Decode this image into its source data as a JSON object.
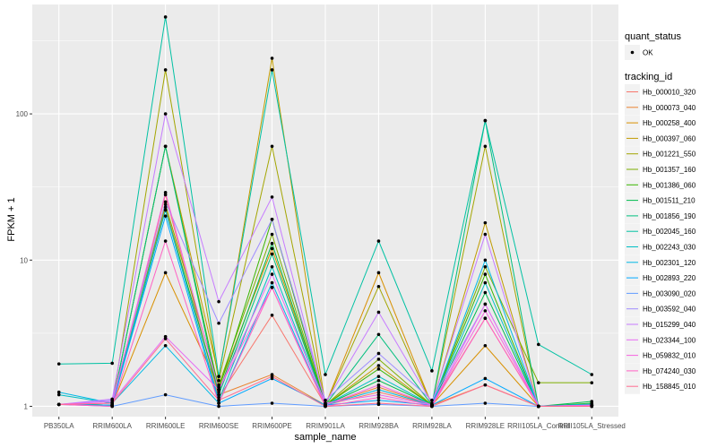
{
  "chart_data": {
    "type": "line",
    "xlabel": "sample_name",
    "ylabel": "FPKM + 1",
    "y_scale": "log10",
    "ylim": [
      0.85,
      560
    ],
    "y_ticks": [
      1,
      10,
      100
    ],
    "y_tick_labels": [
      "1",
      "10",
      "100"
    ],
    "grid": true,
    "legend_placement": "right",
    "x": [
      "PB350LA",
      "RRIM600LA",
      "RRIM600LE",
      "RRIM600SE",
      "RRIM600PE",
      "RRIM901LA",
      "RRIM928BA",
      "RRIM928LA",
      "RRIM928LE",
      "RRII105LA_Control",
      "RRII105LA_Stressed"
    ],
    "shape_legend": {
      "title": "quant_status",
      "entries": [
        "OK"
      ]
    },
    "color_legend_title": "tracking_id",
    "series": [
      {
        "name": "Hb_000010_320",
        "color": "#F8766D",
        "values": [
          1.03,
          1.02,
          28,
          1.15,
          4.2,
          1.02,
          1.25,
          1.02,
          4.0,
          1.0,
          1.01
        ]
      },
      {
        "name": "Hb_000073_040",
        "color": "#EA8331",
        "values": [
          1.03,
          1.02,
          23,
          1.2,
          1.65,
          1.02,
          1.35,
          1.02,
          1.4,
          1.0,
          1.02
        ]
      },
      {
        "name": "Hb_000258_400",
        "color": "#D89000",
        "values": [
          1.03,
          1.02,
          8.2,
          1.35,
          12,
          1.02,
          8.2,
          1.02,
          2.6,
          1.0,
          1.02
        ]
      },
      {
        "name": "Hb_000397_060",
        "color": "#C09B00",
        "values": [
          1.03,
          1.02,
          60,
          1.6,
          240,
          1.02,
          1.9,
          1.02,
          18,
          1.0,
          1.02
        ]
      },
      {
        "name": "Hb_001221_550",
        "color": "#A3A500",
        "values": [
          1.03,
          1.02,
          200,
          1.5,
          60,
          1.02,
          6.6,
          1.02,
          60,
          1.0,
          1.02
        ]
      },
      {
        "name": "Hb_001357_160",
        "color": "#7CAE00",
        "values": [
          1.03,
          1.02,
          24,
          1.4,
          15,
          1.02,
          2.1,
          1.02,
          9,
          1.45,
          1.45
        ]
      },
      {
        "name": "Hb_001386_060",
        "color": "#39B600",
        "values": [
          1.03,
          1.02,
          60,
          1.3,
          19,
          1.02,
          1.8,
          1.02,
          8,
          1.0,
          1.05
        ]
      },
      {
        "name": "Hb_001511_210",
        "color": "#00BB4E",
        "values": [
          1.03,
          1.02,
          22,
          1.25,
          13,
          1.02,
          1.5,
          1.02,
          6,
          1.0,
          1.08
        ]
      },
      {
        "name": "Hb_001856_190",
        "color": "#00BF7D",
        "values": [
          1.03,
          1.02,
          60,
          1.2,
          11,
          1.02,
          3.1,
          1.02,
          90,
          1.0,
          1.03
        ]
      },
      {
        "name": "Hb_002045_160",
        "color": "#00C1A3",
        "values": [
          1.95,
          1.97,
          460,
          1.6,
          200,
          1.65,
          13.5,
          1.75,
          90,
          2.65,
          1.65
        ]
      },
      {
        "name": "Hb_002243_030",
        "color": "#00BFC4",
        "values": [
          1.2,
          1.05,
          22,
          1.1,
          9,
          1.02,
          1.6,
          1.02,
          7,
          1.0,
          1.04
        ]
      },
      {
        "name": "Hb_002301_120",
        "color": "#00B8E5",
        "values": [
          1.25,
          1.05,
          2.6,
          1.05,
          7,
          1.02,
          1.3,
          1.02,
          10,
          1.0,
          1.02
        ]
      },
      {
        "name": "Hb_002893_220",
        "color": "#00A9FF",
        "values": [
          1.03,
          1.02,
          20,
          1.05,
          1.55,
          1.02,
          1.1,
          1.02,
          1.55,
          1.0,
          1.02
        ]
      },
      {
        "name": "Hb_003090_020",
        "color": "#619CFF",
        "values": [
          1.03,
          1.0,
          1.2,
          1.0,
          1.05,
          1.0,
          1.03,
          1.0,
          1.05,
          1.0,
          1.0
        ]
      },
      {
        "name": "Hb_003592_040",
        "color": "#9F8CFF",
        "values": [
          1.03,
          1.1,
          25,
          3.7,
          19,
          1.1,
          2.3,
          1.1,
          5,
          1.0,
          1.01
        ]
      },
      {
        "name": "Hb_015299_040",
        "color": "#C77CFF",
        "values": [
          1.03,
          1.12,
          100,
          5.2,
          27,
          1.05,
          4.4,
          1.05,
          15,
          1.0,
          1.01
        ]
      },
      {
        "name": "Hb_023344_100",
        "color": "#E76BF3",
        "values": [
          1.03,
          1.08,
          3.0,
          1.3,
          8,
          1.05,
          1.2,
          1.02,
          5,
          1.0,
          1.02
        ]
      },
      {
        "name": "Hb_059832_010",
        "color": "#F763E0",
        "values": [
          1.03,
          1.05,
          29,
          1.3,
          6.5,
          1.02,
          1.4,
          1.02,
          4.5,
          1.0,
          1.02
        ]
      },
      {
        "name": "Hb_074240_030",
        "color": "#FF61C3",
        "values": [
          1.03,
          1.0,
          13.5,
          1.05,
          6.5,
          1.0,
          1.15,
          1.0,
          4,
          1.0,
          1.0
        ]
      },
      {
        "name": "Hb_158845_010",
        "color": "#FF6C91",
        "values": [
          1.03,
          1.05,
          2.9,
          1.1,
          1.6,
          1.0,
          1.05,
          1.0,
          1.4,
          1.0,
          1.0
        ]
      }
    ]
  }
}
